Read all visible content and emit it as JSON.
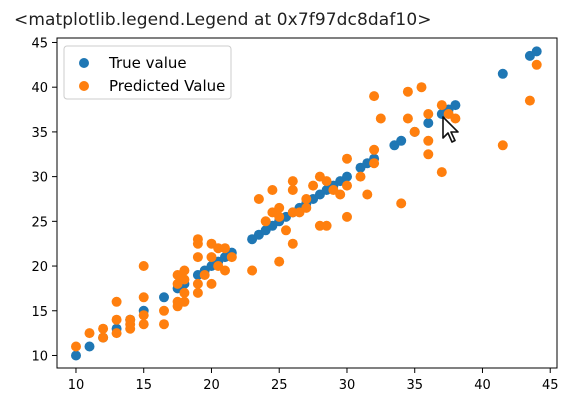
{
  "output": {
    "text": "<matplotlib.legend.Legend at 0x7f97dc8daf10>"
  },
  "colors": {
    "true_value": "#1f77b4",
    "predicted_value": "#ff7f0e",
    "axes": "#000000",
    "legend_border": "#cccccc"
  },
  "cursor": {
    "icon": "mouse-pointer-icon"
  },
  "chart_data": {
    "type": "scatter",
    "title": "",
    "xlabel": "",
    "ylabel": "",
    "xlim": [
      8.6,
      45.5
    ],
    "ylim": [
      8.6,
      45.5
    ],
    "xticks": [
      10,
      15,
      20,
      25,
      30,
      35,
      40,
      45
    ],
    "yticks": [
      10,
      15,
      20,
      25,
      30,
      35,
      40,
      45
    ],
    "grid": false,
    "legend": "upper-left",
    "series": [
      {
        "name": "True value",
        "color": "#1f77b4",
        "points": [
          [
            10,
            10
          ],
          [
            11,
            11
          ],
          [
            12,
            12
          ],
          [
            13,
            13
          ],
          [
            14,
            14
          ],
          [
            15,
            15
          ],
          [
            16.5,
            16.5
          ],
          [
            17.5,
            17.5
          ],
          [
            18,
            18
          ],
          [
            19,
            19
          ],
          [
            19.5,
            19.5
          ],
          [
            20,
            20
          ],
          [
            20.5,
            20.5
          ],
          [
            21,
            21
          ],
          [
            21.5,
            21.5
          ],
          [
            23,
            23
          ],
          [
            23.5,
            23.5
          ],
          [
            24,
            24
          ],
          [
            24.5,
            24.5
          ],
          [
            25,
            25
          ],
          [
            25.5,
            25.5
          ],
          [
            26,
            26
          ],
          [
            26.5,
            26.5
          ],
          [
            27,
            27
          ],
          [
            27.5,
            27.5
          ],
          [
            28,
            28
          ],
          [
            28.5,
            28.5
          ],
          [
            29,
            29
          ],
          [
            29.5,
            29.5
          ],
          [
            30,
            30
          ],
          [
            31,
            31
          ],
          [
            31.5,
            31.5
          ],
          [
            32,
            32
          ],
          [
            33.5,
            33.5
          ],
          [
            34,
            34
          ],
          [
            35,
            35
          ],
          [
            36,
            36
          ],
          [
            37,
            37
          ],
          [
            37.5,
            37.5
          ],
          [
            38,
            38
          ],
          [
            41.5,
            41.5
          ],
          [
            43.5,
            43.5
          ],
          [
            44,
            44
          ]
        ]
      },
      {
        "name": "Predicted Value",
        "color": "#ff7f0e",
        "points": [
          [
            10,
            11
          ],
          [
            11,
            12.5
          ],
          [
            12,
            12
          ],
          [
            12,
            13
          ],
          [
            13,
            16
          ],
          [
            13,
            14
          ],
          [
            13,
            12.5
          ],
          [
            14,
            13.5
          ],
          [
            14,
            13
          ],
          [
            14,
            14
          ],
          [
            15,
            14.5
          ],
          [
            15,
            20
          ],
          [
            15,
            16.5
          ],
          [
            15,
            13.5
          ],
          [
            16.5,
            15
          ],
          [
            16.5,
            13.5
          ],
          [
            17.5,
            19
          ],
          [
            17.5,
            18
          ],
          [
            17.5,
            16
          ],
          [
            17.5,
            15.5
          ],
          [
            18,
            19.5
          ],
          [
            18,
            18.5
          ],
          [
            18,
            17
          ],
          [
            18,
            16
          ],
          [
            19,
            23
          ],
          [
            19,
            22.5
          ],
          [
            19,
            21
          ],
          [
            19,
            18
          ],
          [
            19,
            17
          ],
          [
            19.5,
            19
          ],
          [
            20,
            22.5
          ],
          [
            20,
            21
          ],
          [
            20,
            18
          ],
          [
            20.5,
            22
          ],
          [
            20.5,
            20
          ],
          [
            21,
            22
          ],
          [
            21,
            19.5
          ],
          [
            21.5,
            21
          ],
          [
            23,
            19.5
          ],
          [
            23.5,
            27.5
          ],
          [
            24,
            25
          ],
          [
            24.5,
            28.5
          ],
          [
            24.5,
            26
          ],
          [
            25,
            20.5
          ],
          [
            25,
            26.5
          ],
          [
            25,
            25.5
          ],
          [
            25.5,
            24
          ],
          [
            26,
            29.5
          ],
          [
            26,
            28.5
          ],
          [
            26,
            26
          ],
          [
            26,
            22.5
          ],
          [
            26.5,
            26
          ],
          [
            27,
            27.5
          ],
          [
            27,
            26.5
          ],
          [
            27.5,
            29
          ],
          [
            28,
            30
          ],
          [
            28,
            24.5
          ],
          [
            28.5,
            29.5
          ],
          [
            28.5,
            24.5
          ],
          [
            29,
            28.5
          ],
          [
            29.5,
            28
          ],
          [
            30,
            32
          ],
          [
            30,
            29
          ],
          [
            30,
            25.5
          ],
          [
            31,
            30
          ],
          [
            31.5,
            28
          ],
          [
            32,
            39
          ],
          [
            32,
            33
          ],
          [
            32,
            31.5
          ],
          [
            32.5,
            36.5
          ],
          [
            34,
            27
          ],
          [
            34.5,
            39.5
          ],
          [
            34.5,
            36.5
          ],
          [
            35,
            35
          ],
          [
            35.5,
            40
          ],
          [
            36,
            37
          ],
          [
            36,
            34
          ],
          [
            36,
            32.5
          ],
          [
            37,
            30.5
          ],
          [
            37,
            38
          ],
          [
            37.5,
            37
          ],
          [
            38,
            36.5
          ],
          [
            41.5,
            33.5
          ],
          [
            43.5,
            38.5
          ],
          [
            44,
            42.5
          ]
        ]
      }
    ]
  }
}
